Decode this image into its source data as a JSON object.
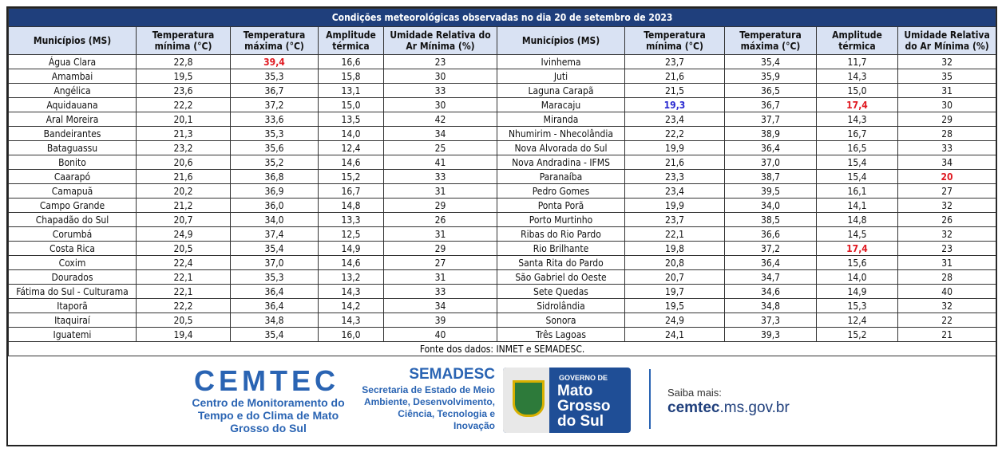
{
  "title": "Condições meteorológicas observadas no dia 20 de setembro de 2023",
  "headers": [
    "Municípios (MS)",
    "Temperatura mínima (°C)",
    "Temperatura máxima (°C)",
    "Amplitude térmica",
    "Umidade Relativa do Ar Mínima (%)"
  ],
  "left_rows": [
    [
      "Água Clara",
      "22,8",
      "39,4",
      "16,6",
      "23"
    ],
    [
      "Amambai",
      "19,5",
      "35,3",
      "15,8",
      "30"
    ],
    [
      "Angélica",
      "23,6",
      "36,7",
      "13,1",
      "33"
    ],
    [
      "Aquidauana",
      "22,2",
      "37,2",
      "15,0",
      "30"
    ],
    [
      "Aral Moreira",
      "20,1",
      "33,6",
      "13,5",
      "42"
    ],
    [
      "Bandeirantes",
      "21,3",
      "35,3",
      "14,0",
      "34"
    ],
    [
      "Bataguassu",
      "23,2",
      "35,6",
      "12,4",
      "25"
    ],
    [
      "Bonito",
      "20,6",
      "35,2",
      "14,6",
      "41"
    ],
    [
      "Caarapó",
      "21,6",
      "36,8",
      "15,2",
      "33"
    ],
    [
      "Camapuã",
      "20,2",
      "36,9",
      "16,7",
      "31"
    ],
    [
      "Campo Grande",
      "21,2",
      "36,0",
      "14,8",
      "29"
    ],
    [
      "Chapadão do Sul",
      "20,7",
      "34,0",
      "13,3",
      "26"
    ],
    [
      "Corumbá",
      "24,9",
      "37,4",
      "12,5",
      "31"
    ],
    [
      "Costa Rica",
      "20,5",
      "35,4",
      "14,9",
      "29"
    ],
    [
      "Coxim",
      "22,4",
      "37,0",
      "14,6",
      "27"
    ],
    [
      "Dourados",
      "22,1",
      "35,3",
      "13,2",
      "31"
    ],
    [
      "Fátima do Sul - Culturama",
      "22,1",
      "36,4",
      "14,3",
      "33"
    ],
    [
      "Itaporã",
      "22,2",
      "36,4",
      "14,2",
      "34"
    ],
    [
      "Itaquiraí",
      "20,5",
      "34,8",
      "14,3",
      "39"
    ],
    [
      "Iguatemi",
      "19,4",
      "35,4",
      "16,0",
      "40"
    ]
  ],
  "right_rows": [
    [
      "Ivinhema",
      "23,7",
      "35,4",
      "11,7",
      "32"
    ],
    [
      "Juti",
      "21,6",
      "35,9",
      "14,3",
      "35"
    ],
    [
      "Laguna Carapã",
      "21,5",
      "36,5",
      "15,0",
      "31"
    ],
    [
      "Maracaju",
      "19,3",
      "36,7",
      "17,4",
      "30"
    ],
    [
      "Miranda",
      "23,4",
      "37,7",
      "14,3",
      "29"
    ],
    [
      "Nhumirim - Nhecolândia",
      "22,2",
      "38,9",
      "16,7",
      "28"
    ],
    [
      "Nova Alvorada do Sul",
      "19,9",
      "36,4",
      "16,5",
      "33"
    ],
    [
      "Nova Andradina - IFMS",
      "21,6",
      "37,0",
      "15,4",
      "34"
    ],
    [
      "Paranaíba",
      "23,3",
      "38,7",
      "15,4",
      "20"
    ],
    [
      "Pedro Gomes",
      "23,4",
      "39,5",
      "16,1",
      "27"
    ],
    [
      "Ponta Porã",
      "19,9",
      "34,0",
      "14,1",
      "32"
    ],
    [
      "Porto Murtinho",
      "23,7",
      "38,5",
      "14,8",
      "26"
    ],
    [
      "Ribas do Rio Pardo",
      "22,1",
      "36,6",
      "14,5",
      "32"
    ],
    [
      "Rio Brilhante",
      "19,8",
      "37,2",
      "17,4",
      "23"
    ],
    [
      "Santa Rita do Pardo",
      "20,8",
      "36,4",
      "15,6",
      "31"
    ],
    [
      "São Gabriel do Oeste",
      "20,7",
      "34,7",
      "14,0",
      "28"
    ],
    [
      "Sete Quedas",
      "19,7",
      "34,6",
      "14,9",
      "40"
    ],
    [
      "Sidrolândia",
      "19,5",
      "34,8",
      "15,3",
      "32"
    ],
    [
      "Sonora",
      "24,9",
      "37,3",
      "12,4",
      "22"
    ],
    [
      "Três Lagoas",
      "24,1",
      "39,3",
      "15,2",
      "21"
    ]
  ],
  "highlights": [
    {
      "side": "left",
      "row": 0,
      "col": 2,
      "color": "#e01a22"
    },
    {
      "side": "right",
      "row": 3,
      "col": 1,
      "color": "#2a2ad0"
    },
    {
      "side": "right",
      "row": 3,
      "col": 3,
      "color": "#e01a22"
    },
    {
      "side": "right",
      "row": 8,
      "col": 4,
      "color": "#e01a22"
    },
    {
      "side": "right",
      "row": 13,
      "col": 3,
      "color": "#e01a22"
    }
  ],
  "source": "Fonte dos dados:  INMET e SEMADESC.",
  "footer": {
    "cemtec_logo": "CEMTEC",
    "cemtec_name": "Centro de Monitoramento do Tempo e do Clima de Mato Grosso do Sul",
    "semadesc_logo": "SEMADESC",
    "semadesc_name": "Secretaria de Estado de Meio Ambiente, Desenvolvimento, Ciência, Tecnologia e Inovação",
    "gov_label": "GOVERNO DE",
    "gov_name": "Mato Grosso do Sul",
    "saiba": "Saiba mais:",
    "site_bold": "cemtec",
    "site_rest": ".ms.gov.br"
  },
  "colors": {
    "title_bar": "#1f3f7c",
    "header_bg": "#d9e2f3",
    "brand_blue": "#2a64b3"
  }
}
